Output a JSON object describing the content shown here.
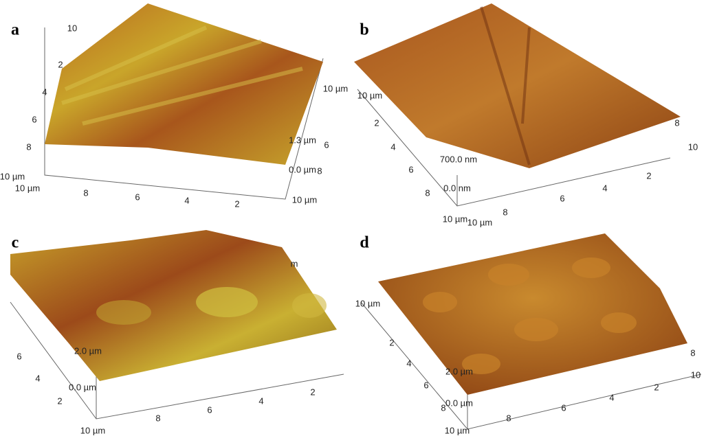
{
  "panels": [
    {
      "label": "a",
      "texts": [
        "10",
        "2",
        "4",
        "6",
        "8",
        "10 µm",
        "10 µm",
        "8",
        "6",
        "4",
        "2",
        "10 µm",
        "1.3 µm",
        "6",
        "0.0 µm",
        "8",
        "10 µm"
      ]
    },
    {
      "label": "b",
      "texts": [
        "10 µm",
        "2",
        "4",
        "6",
        "8",
        "10 µm",
        "10 µm",
        "8",
        "6",
        "4",
        "2",
        "8",
        "10",
        "700.0 nm",
        "0.0 nm"
      ]
    },
    {
      "label": "c",
      "texts": [
        "m",
        "6",
        "4",
        "2",
        "10 µm",
        "8",
        "6",
        "4",
        "2",
        "2.0 µm",
        "0.0 µm"
      ]
    },
    {
      "label": "d",
      "texts": [
        "10 µm",
        "2",
        "4",
        "6",
        "8",
        "10 µm",
        "8",
        "6",
        "4",
        "2",
        "8",
        "10",
        "2.0 µm",
        "0.0 µm"
      ]
    }
  ]
}
